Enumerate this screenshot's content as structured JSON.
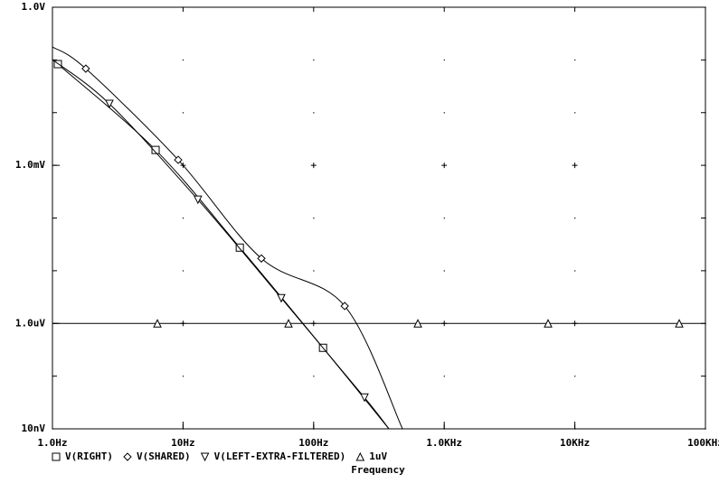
{
  "chart_data": {
    "type": "line",
    "xlabel": "Frequency",
    "xscale": "log",
    "yscale": "log",
    "grid": true,
    "xlim": [
      1,
      100000
    ],
    "ylim": [
      1e-08,
      1
    ],
    "xticks": [
      {
        "value": 1,
        "label": "1.0Hz"
      },
      {
        "value": 10,
        "label": "10Hz"
      },
      {
        "value": 100,
        "label": "100Hz"
      },
      {
        "value": 1000,
        "label": "1.0KHz"
      },
      {
        "value": 10000,
        "label": "10KHz"
      },
      {
        "value": 100000,
        "label": "100KHz"
      }
    ],
    "yticks": [
      {
        "value": 1,
        "label": "1.0V"
      },
      {
        "value": 0.001,
        "label": "1.0mV"
      },
      {
        "value": 1e-06,
        "label": "1.0uV"
      },
      {
        "value": 1e-08,
        "label": "10nV"
      }
    ],
    "series": [
      {
        "name": "V(RIGHT)",
        "marker": "square",
        "color": "#000000",
        "x": [
          1,
          1.1,
          6.16,
          27.2,
          118,
          377
        ],
        "values": [
          0.101,
          0.0832,
          0.00196,
          2.75e-05,
          3.44e-07,
          1e-08
        ]
      },
      {
        "name": "V(SHARED)",
        "marker": "diamond",
        "color": "#000000",
        "x": [
          1,
          1.8,
          9.18,
          39.8,
          173,
          479
        ],
        "values": [
          0.176,
          0.0683,
          0.00127,
          1.71e-05,
          2.14e-06,
          1e-08
        ]
      },
      {
        "name": "V(LEFT-EXTRA-FILTERED)",
        "marker": "triangle-down",
        "color": "#000000",
        "x": [
          1,
          2.73,
          13.0,
          56.5,
          245,
          377
        ],
        "values": [
          0.101,
          0.0147,
          0.000223,
          3.02e-06,
          3.93e-08,
          1e-08
        ]
      },
      {
        "name": "1uV",
        "marker": "triangle-up",
        "color": "#000000",
        "x": [
          1,
          6.36,
          64.2,
          628,
          6240,
          63000,
          100000
        ],
        "values": [
          1e-06,
          1e-06,
          1e-06,
          1e-06,
          1e-06,
          1e-06,
          1e-06
        ]
      }
    ]
  }
}
